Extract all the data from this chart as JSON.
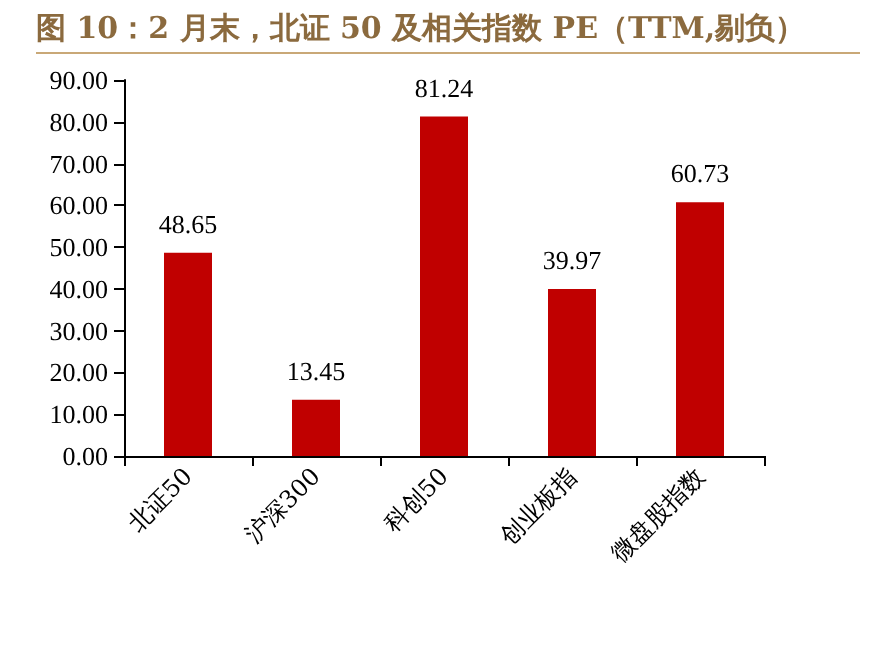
{
  "chart_data": {
    "type": "bar",
    "title": "图 10：2 月末，北证 50 及相关指数 PE（TTM,剔负）",
    "categories": [
      "北证50",
      "沪深300",
      "科创50",
      "创业板指",
      "微盘股指数"
    ],
    "values": [
      48.65,
      13.45,
      81.24,
      39.97,
      60.73
    ],
    "color": "#c00000",
    "ylim": [
      0,
      90
    ],
    "yticks": [
      {
        "value": 0,
        "label": "0.00"
      },
      {
        "value": 10,
        "label": "10.00"
      },
      {
        "value": 20,
        "label": "20.00"
      },
      {
        "value": 30,
        "label": "30.00"
      },
      {
        "value": 40,
        "label": "40.00"
      },
      {
        "value": 50,
        "label": "50.00"
      },
      {
        "value": 60,
        "label": "60.00"
      },
      {
        "value": 70,
        "label": "70.00"
      },
      {
        "value": 80,
        "label": "80.00"
      },
      {
        "value": 90,
        "label": "90.00"
      }
    ],
    "data_labels": true,
    "grid": false
  }
}
